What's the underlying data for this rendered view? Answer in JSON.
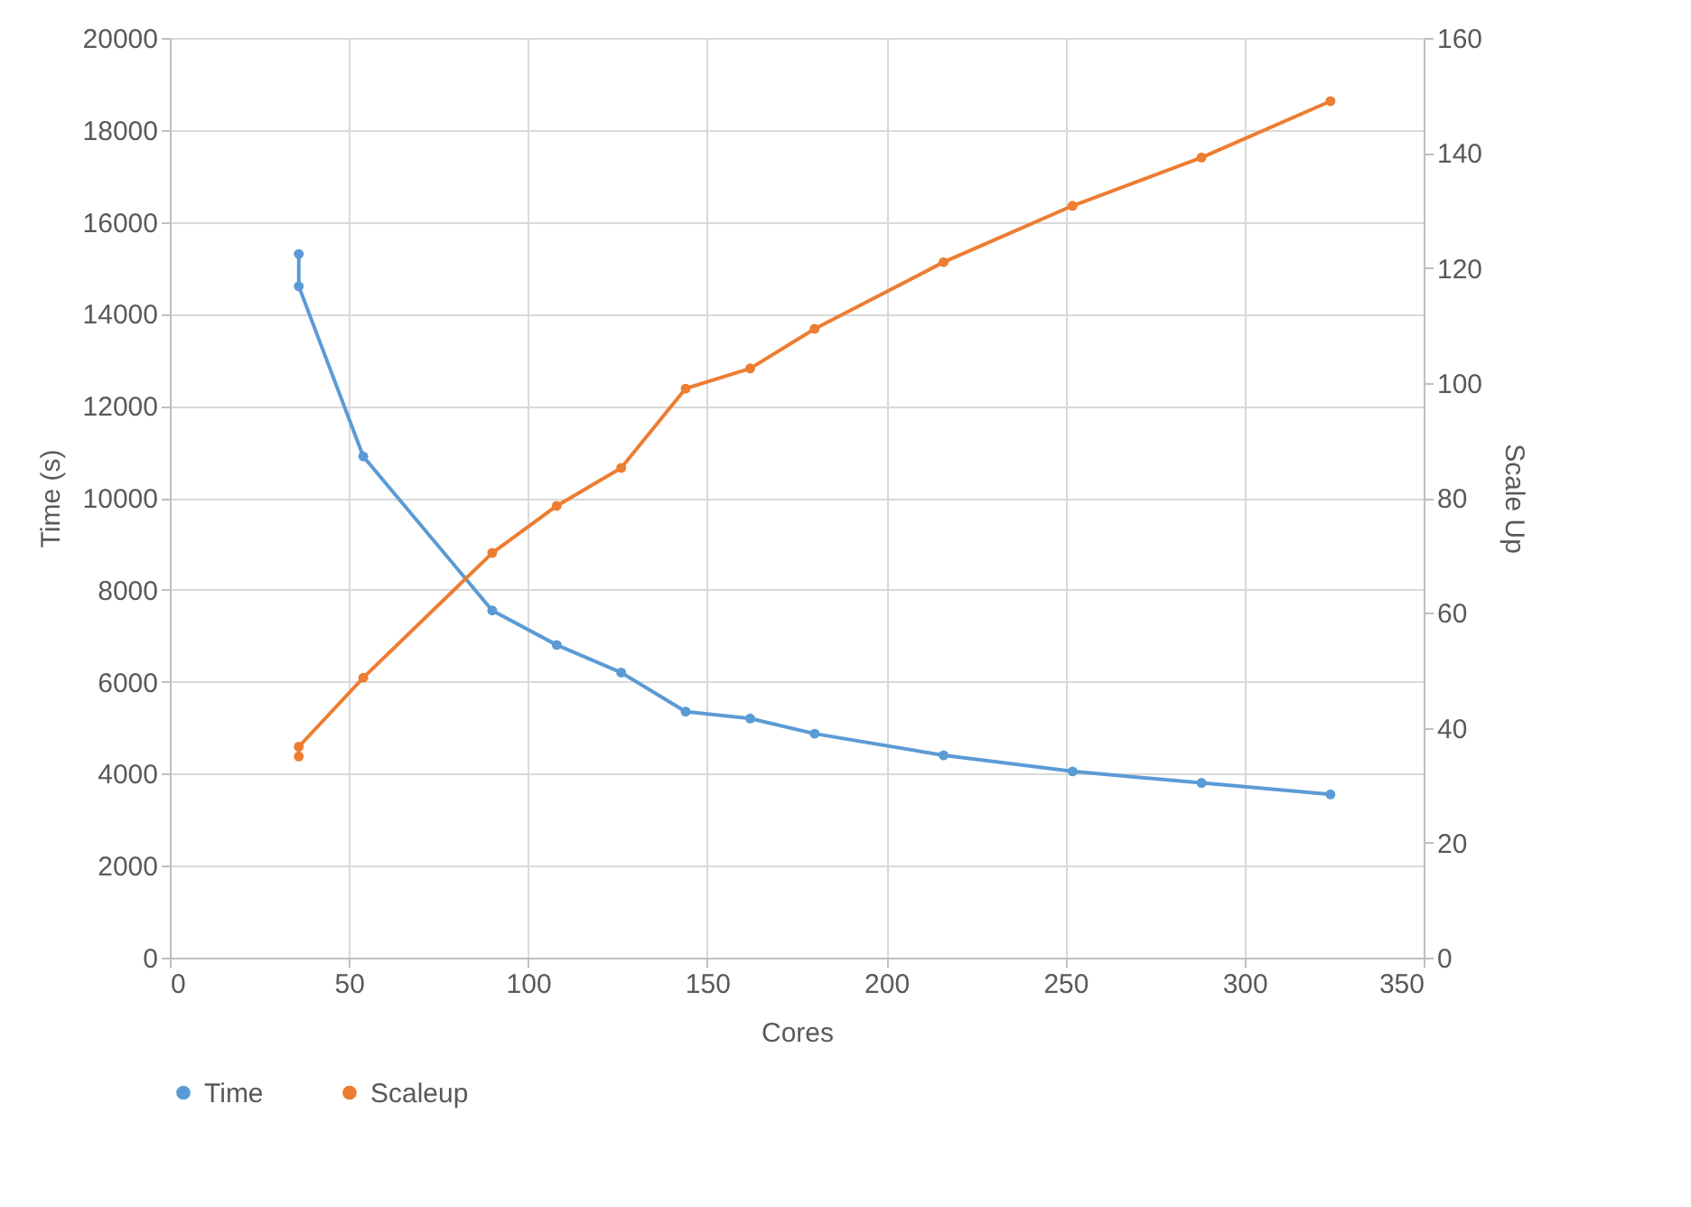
{
  "chart_data": {
    "type": "line",
    "xlabel": "Cores",
    "ylabel": "Time (s)",
    "y2label": "Scale Up",
    "xlim": [
      0,
      350
    ],
    "xticks": [
      0,
      50,
      100,
      150,
      200,
      250,
      300,
      350
    ],
    "ylim": [
      0,
      20000
    ],
    "yticks": [
      0,
      2000,
      4000,
      6000,
      8000,
      10000,
      12000,
      14000,
      16000,
      18000,
      20000
    ],
    "y2lim": [
      0,
      160
    ],
    "y2ticks": [
      0,
      20,
      40,
      60,
      80,
      100,
      120,
      140,
      160
    ],
    "grid": true,
    "legend": "bottom",
    "marker": "circle",
    "line_style": "solid",
    "series": [
      {
        "name": "Time",
        "color": "#5b9bd5",
        "x": [
          36,
          36,
          54,
          90,
          108,
          126,
          144,
          162,
          180,
          216,
          252,
          288,
          324
        ],
        "values": [
          15300,
          14600,
          10900,
          7550,
          6800,
          6200,
          5350,
          5200,
          4870,
          4400,
          4050,
          3800,
          3550
        ]
      },
      {
        "name": "Scaleup",
        "color": "#ed7d31",
        "axis": "y2",
        "x": [
          36,
          36,
          54,
          90,
          108,
          126,
          144,
          162,
          180,
          216,
          252,
          288,
          324
        ],
        "values": [
          35,
          36.7,
          48.7,
          70.4,
          78.6,
          85.2,
          99,
          102.5,
          109.4,
          121,
          130.8,
          139.2,
          149
        ]
      }
    ]
  }
}
